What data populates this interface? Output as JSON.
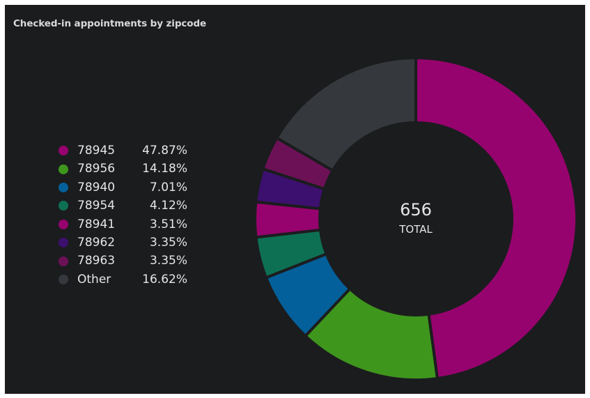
{
  "panel": {
    "title": "Checked-in appointments by zipcode"
  },
  "chart_data": {
    "type": "pie",
    "donut": true,
    "title": "Checked-in appointments by zipcode",
    "total": {
      "value": "656",
      "label": "TOTAL"
    },
    "legend_position": "left",
    "slices": [
      {
        "label": "78945",
        "percent": 47.87,
        "display": "47.87%",
        "color": "#97036e"
      },
      {
        "label": "78956",
        "percent": 14.18,
        "display": "14.18%",
        "color": "#3e961d"
      },
      {
        "label": "78940",
        "percent": 7.01,
        "display": "7.01%",
        "color": "#03609a"
      },
      {
        "label": "78954",
        "percent": 4.12,
        "display": "4.12%",
        "color": "#0e7053"
      },
      {
        "label": "78941",
        "percent": 3.51,
        "display": "3.51%",
        "color": "#97036e"
      },
      {
        "label": "78962",
        "percent": 3.35,
        "display": "3.35%",
        "color": "#3c106e"
      },
      {
        "label": "78963",
        "percent": 3.35,
        "display": "3.35%",
        "color": "#6d1157"
      },
      {
        "label": "Other",
        "percent": 16.62,
        "display": "16.62%",
        "color": "#35383c"
      }
    ]
  }
}
